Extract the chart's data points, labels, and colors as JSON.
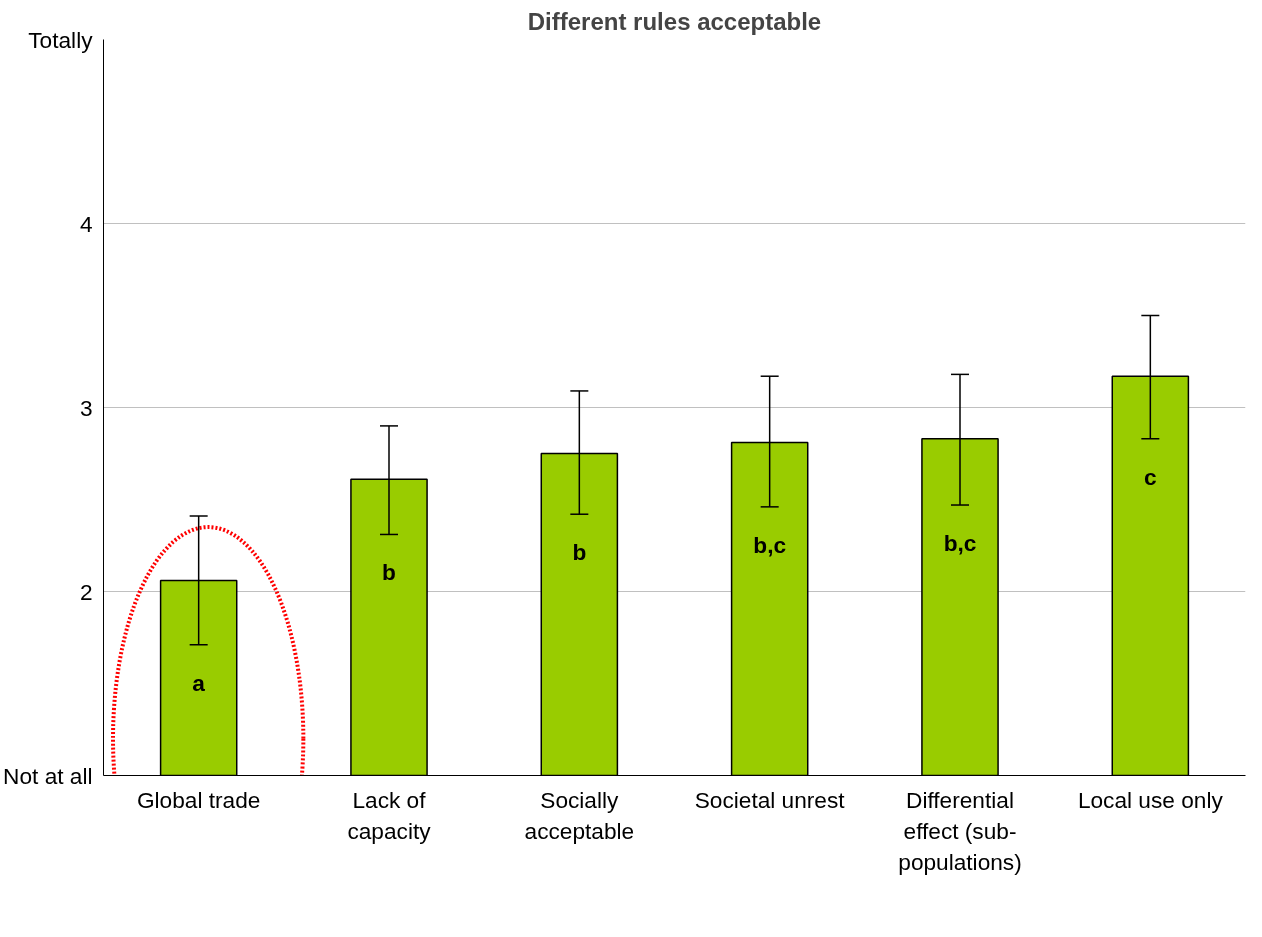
{
  "chart_data": {
    "type": "bar",
    "title": "Different rules acceptable",
    "categories": [
      "Global trade",
      "Lack of capacity",
      "Socially acceptable",
      "Societal unrest",
      "Differential effect (sub-populations)",
      "Local use only"
    ],
    "values": [
      2.06,
      2.61,
      2.75,
      2.81,
      2.83,
      3.17
    ],
    "errors": [
      [
        1.71,
        2.41
      ],
      [
        2.31,
        2.9
      ],
      [
        2.42,
        3.09
      ],
      [
        2.46,
        3.17
      ],
      [
        2.47,
        3.18
      ],
      [
        2.83,
        3.5
      ]
    ],
    "color": "#99cc00",
    "ylim": [
      1,
      5
    ],
    "yticks": [
      {
        "value": 1,
        "label": "Not at all"
      },
      2,
      3,
      4,
      {
        "value": 5,
        "label": "Totally"
      }
    ],
    "grid": "y",
    "annotations": [
      "a",
      "b",
      "b",
      "b,c",
      "b,c",
      "c"
    ]
  }
}
